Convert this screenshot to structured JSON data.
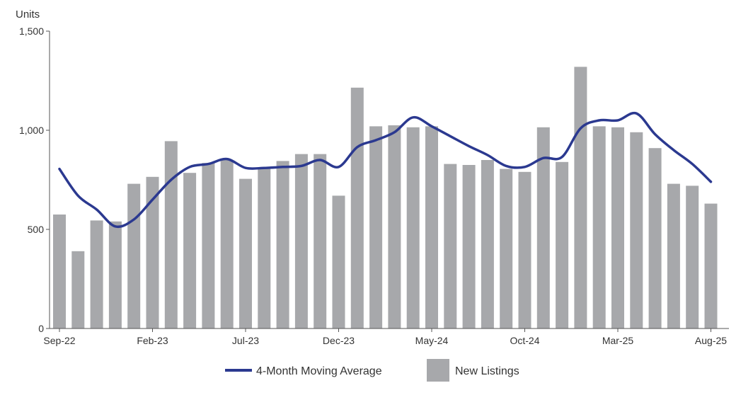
{
  "chart_data": {
    "type": "bar",
    "title": "",
    "ylabel": "Units",
    "xlabel": "",
    "ylim": [
      0,
      1500
    ],
    "yticks": [
      0,
      500,
      1000,
      1500
    ],
    "ytick_labels": [
      "0",
      "500",
      "1,000",
      "1,500"
    ],
    "categories": [
      "Sep-22",
      "Oct-22",
      "Nov-22",
      "Dec-22",
      "Jan-23",
      "Feb-23",
      "Mar-23",
      "Apr-23",
      "May-23",
      "Jun-23",
      "Jul-23",
      "Aug-23",
      "Sep-23",
      "Oct-23",
      "Nov-23",
      "Dec-23",
      "Jan-24",
      "Feb-24",
      "Mar-24",
      "Apr-24",
      "May-24",
      "Jun-24",
      "Jul-24",
      "Aug-24",
      "Sep-24",
      "Oct-24",
      "Nov-24",
      "Dec-24",
      "Jan-25",
      "Feb-25",
      "Mar-25",
      "Apr-25",
      "May-25",
      "Jun-25",
      "Jul-25",
      "Aug-25"
    ],
    "xtick_labels": [
      "Sep-22",
      "Feb-23",
      "Jul-23",
      "Dec-23",
      "May-24",
      "Oct-24",
      "Mar-25",
      "Aug-25"
    ],
    "series": [
      {
        "name": "New Listings",
        "type": "bar",
        "color": "#a7a8ab",
        "values": [
          575,
          390,
          545,
          540,
          730,
          765,
          945,
          785,
          835,
          850,
          755,
          810,
          845,
          880,
          880,
          670,
          1215,
          1020,
          1025,
          1015,
          1020,
          830,
          825,
          850,
          805,
          790,
          1015,
          840,
          1320,
          1020,
          1015,
          990,
          910,
          730,
          720,
          630
        ]
      },
      {
        "name": "4-Month Moving Average",
        "type": "line",
        "color": "#2b3990",
        "values": [
          805,
          670,
          600,
          515,
          550,
          650,
          750,
          815,
          830,
          855,
          810,
          810,
          815,
          820,
          850,
          815,
          915,
          950,
          990,
          1065,
          1020,
          970,
          920,
          875,
          820,
          815,
          860,
          865,
          1010,
          1050,
          1050,
          1085,
          980,
          900,
          830,
          740
        ]
      }
    ],
    "legend": {
      "position": "bottom",
      "items": [
        "4-Month Moving Average",
        "New Listings"
      ]
    }
  }
}
